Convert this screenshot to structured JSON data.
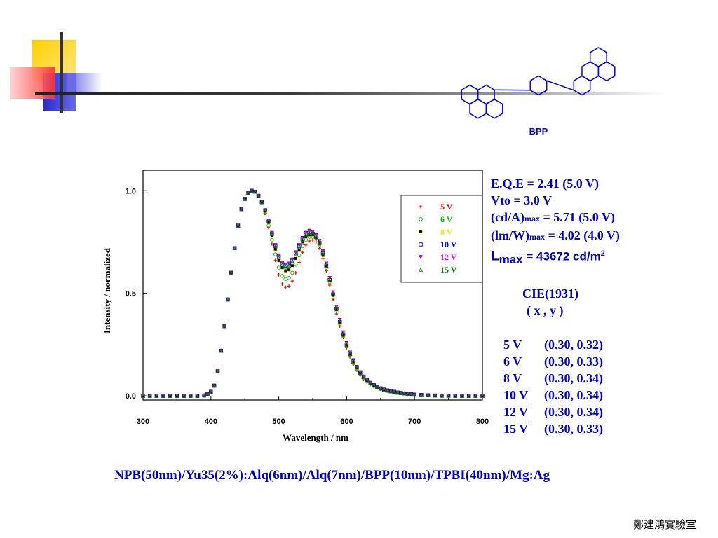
{
  "molecule": {
    "label": "BPP",
    "icon": "bpp-molecule-structure-icon"
  },
  "chart_data": {
    "type": "scatter",
    "xlabel": "Wavelength / nm",
    "ylabel": "Intensity / normalized",
    "xlim": [
      300,
      800
    ],
    "ylim": [
      -0.02,
      1.1
    ],
    "xticks": [
      300,
      400,
      500,
      600,
      700,
      800
    ],
    "yticks": [
      0.0,
      0.5,
      1.0
    ],
    "xtick_labels": [
      "300",
      "400",
      "500",
      "600",
      "700",
      "800"
    ],
    "ytick_labels": [
      "0.0",
      "0.5",
      "1.0"
    ],
    "grid": false,
    "legend_position": "top-right",
    "x": [
      300,
      310,
      320,
      330,
      340,
      350,
      360,
      370,
      380,
      390,
      395,
      400,
      405,
      410,
      415,
      420,
      425,
      430,
      435,
      440,
      445,
      450,
      455,
      460,
      465,
      470,
      475,
      480,
      485,
      490,
      495,
      500,
      505,
      510,
      515,
      520,
      525,
      530,
      535,
      540,
      545,
      550,
      555,
      560,
      565,
      570,
      575,
      580,
      585,
      590,
      595,
      600,
      605,
      610,
      615,
      620,
      625,
      630,
      635,
      640,
      645,
      650,
      655,
      660,
      665,
      670,
      675,
      680,
      685,
      690,
      695,
      700,
      710,
      720,
      730,
      740,
      750,
      760,
      770,
      780,
      790,
      800
    ],
    "series": [
      {
        "name": "5 V",
        "color": "#ff0000",
        "marker": "plus",
        "values": [
          0,
          0,
          0,
          0,
          0,
          0,
          0,
          0,
          0,
          0.002,
          0.008,
          0.02,
          0.05,
          0.12,
          0.22,
          0.34,
          0.47,
          0.6,
          0.72,
          0.83,
          0.91,
          0.96,
          0.99,
          1.0,
          0.995,
          0.975,
          0.94,
          0.89,
          0.82,
          0.74,
          0.66,
          0.59,
          0.545,
          0.53,
          0.535,
          0.56,
          0.6,
          0.65,
          0.7,
          0.735,
          0.755,
          0.76,
          0.75,
          0.72,
          0.67,
          0.61,
          0.54,
          0.47,
          0.4,
          0.34,
          0.285,
          0.235,
          0.19,
          0.155,
          0.125,
          0.1,
          0.08,
          0.065,
          0.055,
          0.045,
          0.038,
          0.032,
          0.028,
          0.024,
          0.021,
          0.018,
          0.015,
          0.013,
          0.011,
          0.009,
          0.008,
          0.006,
          0.004,
          0.003,
          0.002,
          0.001,
          0.001,
          0,
          0,
          0,
          0,
          0
        ]
      },
      {
        "name": "6 V",
        "color": "#00c000",
        "marker": "circle",
        "values": [
          0,
          0,
          0,
          0,
          0,
          0,
          0,
          0,
          0,
          0.002,
          0.008,
          0.02,
          0.05,
          0.12,
          0.22,
          0.34,
          0.47,
          0.6,
          0.72,
          0.83,
          0.91,
          0.96,
          0.99,
          1.0,
          0.995,
          0.975,
          0.94,
          0.89,
          0.83,
          0.76,
          0.69,
          0.625,
          0.585,
          0.57,
          0.575,
          0.6,
          0.64,
          0.685,
          0.73,
          0.76,
          0.775,
          0.775,
          0.765,
          0.735,
          0.685,
          0.625,
          0.555,
          0.485,
          0.415,
          0.35,
          0.29,
          0.24,
          0.195,
          0.16,
          0.13,
          0.105,
          0.085,
          0.07,
          0.058,
          0.048,
          0.04,
          0.034,
          0.029,
          0.025,
          0.022,
          0.019,
          0.016,
          0.014,
          0.012,
          0.01,
          0.008,
          0.006,
          0.004,
          0.003,
          0.002,
          0.001,
          0.001,
          0,
          0,
          0,
          0,
          0
        ]
      },
      {
        "name": "8 V",
        "color": "#e8e800",
        "marker": "square",
        "values": [
          0,
          0,
          0,
          0,
          0,
          0,
          0,
          0,
          0,
          0.002,
          0.008,
          0.02,
          0.05,
          0.12,
          0.22,
          0.34,
          0.47,
          0.6,
          0.72,
          0.83,
          0.91,
          0.96,
          0.99,
          1.0,
          0.995,
          0.975,
          0.945,
          0.9,
          0.845,
          0.78,
          0.715,
          0.66,
          0.625,
          0.61,
          0.615,
          0.635,
          0.67,
          0.71,
          0.75,
          0.775,
          0.785,
          0.785,
          0.77,
          0.74,
          0.69,
          0.63,
          0.56,
          0.49,
          0.42,
          0.355,
          0.295,
          0.245,
          0.2,
          0.165,
          0.135,
          0.11,
          0.09,
          0.073,
          0.06,
          0.05,
          0.042,
          0.035,
          0.03,
          0.026,
          0.022,
          0.019,
          0.016,
          0.014,
          0.012,
          0.01,
          0.008,
          0.006,
          0.004,
          0.003,
          0.002,
          0.001,
          0.001,
          0,
          0,
          0,
          0,
          0
        ]
      },
      {
        "name": "10 V",
        "color": "#0000ff",
        "marker": "square-open",
        "values": [
          0,
          0,
          0,
          0,
          0,
          0,
          0,
          0,
          0,
          0.002,
          0.008,
          0.02,
          0.05,
          0.12,
          0.22,
          0.34,
          0.47,
          0.6,
          0.72,
          0.83,
          0.91,
          0.96,
          0.99,
          1.0,
          0.995,
          0.975,
          0.945,
          0.905,
          0.85,
          0.79,
          0.73,
          0.68,
          0.645,
          0.635,
          0.64,
          0.66,
          0.695,
          0.73,
          0.765,
          0.785,
          0.795,
          0.79,
          0.775,
          0.745,
          0.695,
          0.635,
          0.565,
          0.495,
          0.425,
          0.36,
          0.3,
          0.25,
          0.205,
          0.168,
          0.138,
          0.112,
          0.092,
          0.075,
          0.062,
          0.051,
          0.043,
          0.036,
          0.031,
          0.026,
          0.022,
          0.019,
          0.016,
          0.014,
          0.012,
          0.01,
          0.008,
          0.006,
          0.004,
          0.003,
          0.002,
          0.001,
          0.001,
          0,
          0,
          0,
          0,
          0
        ]
      },
      {
        "name": "12 V",
        "color": "#ff00ff",
        "marker": "triangle-down",
        "values": [
          0,
          0,
          0,
          0,
          0,
          0,
          0,
          0,
          0,
          0.002,
          0.008,
          0.02,
          0.05,
          0.12,
          0.22,
          0.34,
          0.47,
          0.6,
          0.72,
          0.83,
          0.91,
          0.96,
          0.99,
          1.0,
          0.995,
          0.975,
          0.945,
          0.905,
          0.855,
          0.795,
          0.735,
          0.685,
          0.65,
          0.64,
          0.645,
          0.665,
          0.7,
          0.735,
          0.77,
          0.795,
          0.805,
          0.8,
          0.785,
          0.755,
          0.705,
          0.645,
          0.575,
          0.505,
          0.435,
          0.37,
          0.31,
          0.258,
          0.212,
          0.174,
          0.142,
          0.116,
          0.095,
          0.078,
          0.064,
          0.053,
          0.044,
          0.037,
          0.031,
          0.027,
          0.023,
          0.02,
          0.017,
          0.014,
          0.012,
          0.01,
          0.008,
          0.006,
          0.004,
          0.003,
          0.002,
          0.001,
          0.001,
          0,
          0,
          0,
          0,
          0
        ]
      },
      {
        "name": "15 V",
        "color": "#008000",
        "marker": "triangle-open",
        "values": [
          0,
          0,
          0,
          0,
          0,
          0,
          0,
          0,
          0,
          0.002,
          0.008,
          0.02,
          0.05,
          0.12,
          0.22,
          0.34,
          0.47,
          0.6,
          0.72,
          0.83,
          0.91,
          0.96,
          0.99,
          1.0,
          0.995,
          0.975,
          0.945,
          0.905,
          0.85,
          0.79,
          0.73,
          0.675,
          0.64,
          0.63,
          0.635,
          0.655,
          0.69,
          0.725,
          0.76,
          0.785,
          0.795,
          0.79,
          0.775,
          0.745,
          0.695,
          0.635,
          0.565,
          0.495,
          0.425,
          0.36,
          0.3,
          0.25,
          0.205,
          0.168,
          0.138,
          0.112,
          0.092,
          0.075,
          0.062,
          0.051,
          0.043,
          0.036,
          0.031,
          0.026,
          0.022,
          0.019,
          0.016,
          0.014,
          0.012,
          0.01,
          0.008,
          0.006,
          0.004,
          0.003,
          0.002,
          0.001,
          0.001,
          0,
          0,
          0,
          0,
          0
        ]
      }
    ]
  },
  "info": {
    "eqe": "E.Q.E = 2.41 (5.0 V)",
    "vto": "Vto = 3.0 V",
    "cda_prefix": "(cd/A)",
    "cda_sub": "max",
    "cda_suffix": " = 5.71 (5.0 V)",
    "lmw_prefix": "(lm/W)",
    "lmw_sub": "max",
    "lmw_suffix": " = 4.02 (4.0 V)",
    "lmax_prefix": "L",
    "lmax_sub": "max",
    "lmax_suffix": " = 43672 cd/m",
    "lmax_sup": "2"
  },
  "cie": {
    "title": "CIE(1931)",
    "subtitle": "(  x   ,   y  )",
    "rows": [
      {
        "voltage": "5 V",
        "coords": "(0.30, 0.32)"
      },
      {
        "voltage": "6 V",
        "coords": "(0.30, 0.33)"
      },
      {
        "voltage": "8 V",
        "coords": "(0.30, 0.34)"
      },
      {
        "voltage": "10 V",
        "coords": "(0.30, 0.34)"
      },
      {
        "voltage": "12 V",
        "coords": "(0.30, 0.34)"
      },
      {
        "voltage": "15 V",
        "coords": "(0.30, 0.33)"
      }
    ]
  },
  "device": "NPB(50nm)/Yu35(2%):Alq(6nm)/Alq(7nm)/BPP(10nm)/TPBI(40nm)/Mg:Ag",
  "footer": "鄭建鴻實驗室",
  "colors": {
    "accent_blue": "#0000cc",
    "deco_yellow": "#ffcc00",
    "deco_red": "#ff3333",
    "deco_blue": "#3333cc"
  }
}
